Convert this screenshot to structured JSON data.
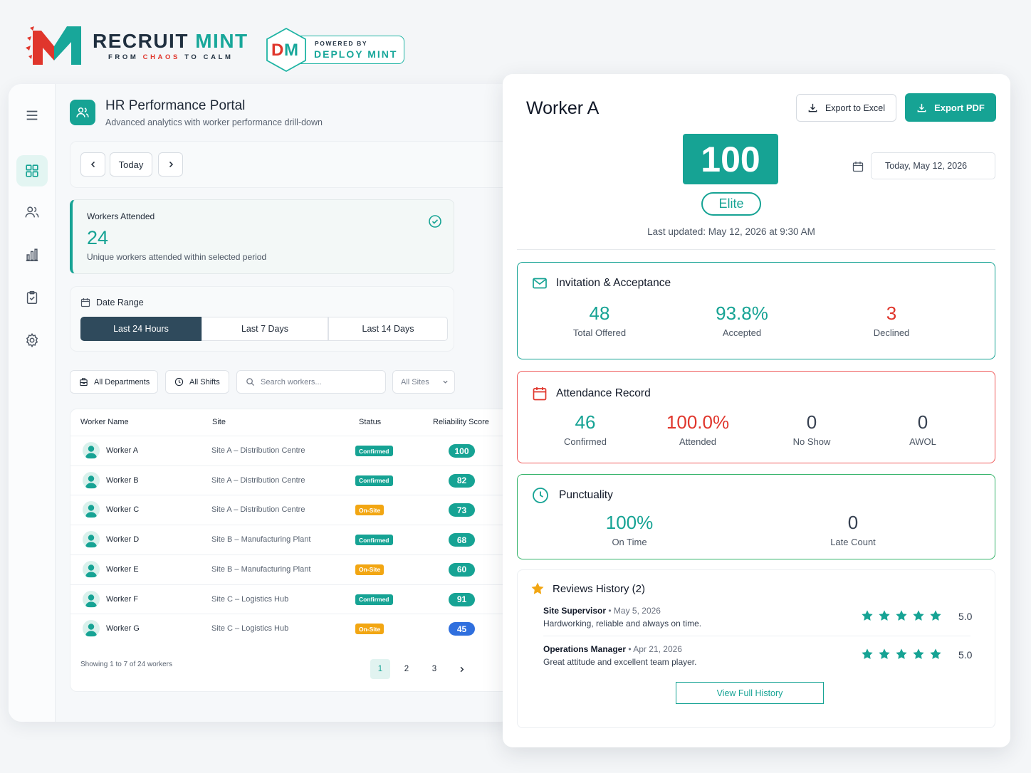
{
  "brand": {
    "name_part1": "RECRUIT",
    "name_part2": "MINT",
    "tag_part1": "FROM",
    "tag_part2": "CHAOS",
    "tag_part3": "TO CALM",
    "powered_by": "POWERED BY",
    "partner": "DEPLOY MINT",
    "partner_monogram": "DM",
    "colors": {
      "mint": "#18a79a",
      "red": "#e0362c",
      "navy": "#1f2f3f"
    }
  },
  "sidebar": {
    "items": [
      {
        "icon": "menu-icon"
      },
      {
        "icon": "dashboard-icon",
        "active": true
      },
      {
        "icon": "users-icon"
      },
      {
        "icon": "bar-chart-icon"
      },
      {
        "icon": "clipboard-icon"
      },
      {
        "icon": "gear-icon"
      }
    ]
  },
  "portal": {
    "title": "HR Performance Portal",
    "subtitle": "Advanced analytics with worker performance drill-down",
    "icon": "users-icon"
  },
  "date_nav": {
    "today_label": "Today",
    "prev_icon": "chevron-left-icon",
    "next_icon": "chevron-right-icon"
  },
  "attended": {
    "label": "Workers Attended",
    "value": "24",
    "description": "Unique workers attended within selected period"
  },
  "date_range": {
    "title": "Date Range",
    "options": [
      "Last 24 Hours",
      "Last 7 Days",
      "Last 14 Days"
    ],
    "selected": "Last 24 Hours"
  },
  "filters": {
    "departments": "All Departments",
    "shifts": "All Shifts",
    "search_placeholder": "Search workers...",
    "sites": "All Sites"
  },
  "table": {
    "headers": [
      "Worker Name",
      "Site",
      "Status",
      "Reliability Score"
    ],
    "rows": [
      {
        "name": "Worker A",
        "site": "Site A – Distribution Centre",
        "status": "Confirmed",
        "score": "100"
      },
      {
        "name": "Worker B",
        "site": "Site A – Distribution Centre",
        "status": "Confirmed",
        "score": "82"
      },
      {
        "name": "Worker C",
        "site": "Site A – Distribution Centre",
        "status": "On-Site",
        "score": "73"
      },
      {
        "name": "Worker D",
        "site": "Site B – Manufacturing Plant",
        "status": "Confirmed",
        "score": "68"
      },
      {
        "name": "Worker E",
        "site": "Site B – Manufacturing Plant",
        "status": "On-Site",
        "score": "60"
      },
      {
        "name": "Worker F",
        "site": "Site C – Logistics Hub",
        "status": "Confirmed",
        "score": "91"
      },
      {
        "name": "Worker G",
        "site": "Site C – Logistics Hub",
        "status": "On-Site",
        "score": "45"
      }
    ],
    "status_colors": {
      "Confirmed": "#16a394",
      "On-Site": "#f2a612"
    },
    "score_colors": {
      "high": "#16a394",
      "low": "#2f6fde"
    },
    "showing": "Showing 1 to 7 of 24 workers",
    "pages": [
      "1",
      "2",
      "3"
    ],
    "current_page": "1"
  },
  "detail": {
    "worker_title": "Worker A",
    "export_excel": "Export to Excel",
    "export_pdf": "Export PDF",
    "score": "100",
    "tier": "Elite",
    "last_updated": "Last updated: May 12, 2026 at 9:30 AM",
    "date_value": "Today, May 12, 2026",
    "invitation": {
      "title": "Invitation & Acceptance",
      "color": "#16a394",
      "metrics": [
        {
          "value": "48",
          "label": "Total Offered",
          "color": "#16a394"
        },
        {
          "value": "93.8%",
          "label": "Accepted",
          "color": "#16a394"
        },
        {
          "value": "3",
          "label": "Declined",
          "color": "#e0362c"
        }
      ]
    },
    "attendance": {
      "title": "Attendance Record",
      "color": "#ef4a4a",
      "metrics": [
        {
          "value": "46",
          "label": "Confirmed",
          "color": "#16a394"
        },
        {
          "value": "100.0%",
          "label": "Attended",
          "color": "#e0362c"
        },
        {
          "value": "0",
          "label": "No Show",
          "color": "#374151"
        },
        {
          "value": "0",
          "label": "AWOL",
          "color": "#374151"
        }
      ]
    },
    "punctuality": {
      "title": "Punctuality",
      "color": "#35b36a",
      "metrics": [
        {
          "value": "100%",
          "label": "On Time",
          "color": "#16a394"
        },
        {
          "value": "0",
          "label": "Late Count",
          "color": "#374151"
        }
      ]
    },
    "reviews": {
      "title": "Reviews History (2)",
      "items": [
        {
          "author": "Site Supervisor",
          "date": "May 5, 2026",
          "text": "Hardworking, reliable and always on time.",
          "stars": 5,
          "score": "5.0"
        },
        {
          "author": "Operations Manager",
          "date": "Apr 21, 2026",
          "text": "Great attitude and excellent team player.",
          "stars": 5,
          "score": "5.0"
        }
      ],
      "view_all": "View Full History"
    }
  }
}
